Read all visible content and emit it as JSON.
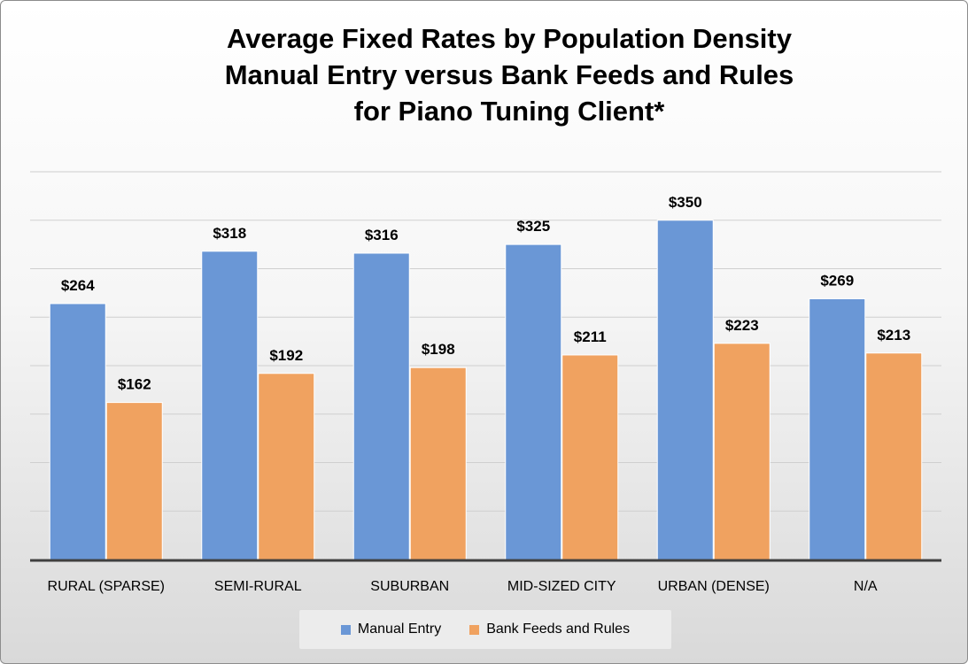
{
  "chart_data": {
    "type": "bar",
    "title_lines": [
      "Average Fixed Rates by Population Density",
      "Manual Entry versus Bank Feeds and Rules",
      "for Piano Tuning Client*"
    ],
    "categories": [
      "RURAL (SPARSE)",
      "SEMI-RURAL",
      "SUBURBAN",
      "MID-SIZED CITY",
      "URBAN (DENSE)",
      "N/A"
    ],
    "series": [
      {
        "name": "Manual Entry",
        "color": "#6a97d6",
        "values": [
          264,
          318,
          316,
          325,
          350,
          269
        ],
        "labels": [
          "$264",
          "$318",
          "$316",
          "$325",
          "$350",
          "$269"
        ]
      },
      {
        "name": "Bank Feeds and Rules",
        "color": "#f0a260",
        "values": [
          162,
          192,
          198,
          211,
          223,
          213
        ],
        "labels": [
          "$162",
          "$192",
          "$198",
          "$211",
          "$223",
          "$213"
        ]
      }
    ],
    "ylim": [
      0,
      400
    ],
    "grid": true,
    "legend_position": "bottom"
  }
}
